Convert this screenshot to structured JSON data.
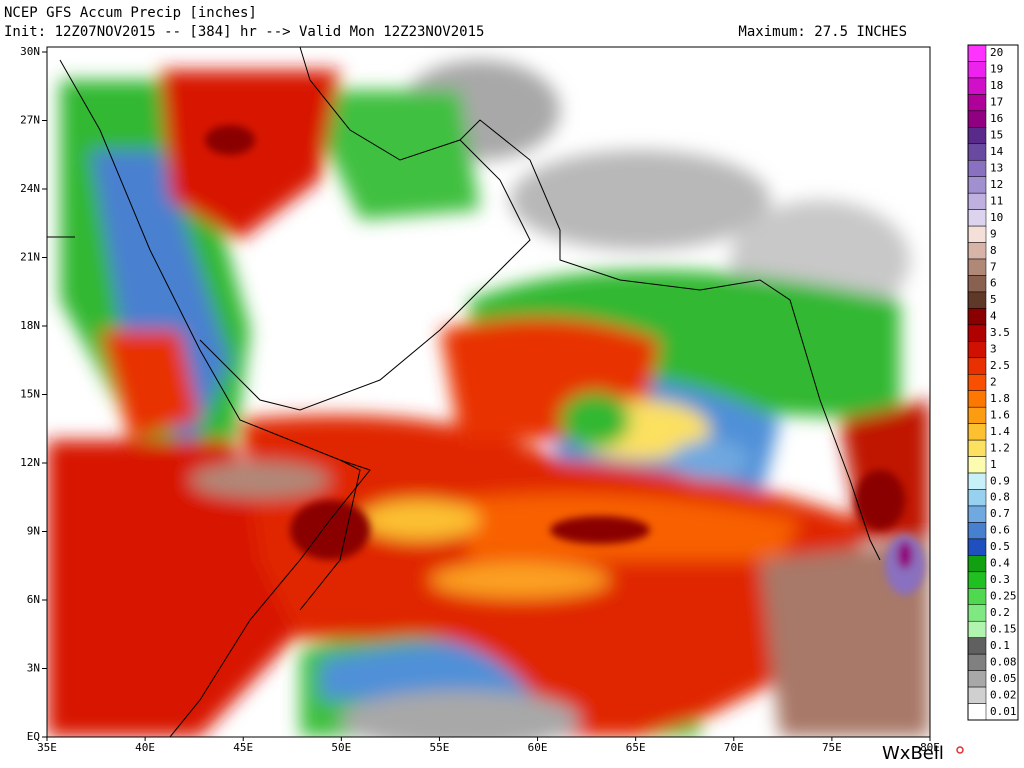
{
  "header": {
    "title": "NCEP GFS Accum Precip [inches]",
    "subtitle": "Init: 12Z07NOV2015 -- [384] hr --> Valid Mon 12Z23NOV2015",
    "maximum": "Maximum: 27.5 INCHES"
  },
  "map": {
    "lat_labels": [
      "30N",
      "27N",
      "24N",
      "21N",
      "18N",
      "15N",
      "12N",
      "9N",
      "6N",
      "3N",
      "EQ"
    ],
    "lon_labels": [
      "35E",
      "40E",
      "45E",
      "50E",
      "55E",
      "60E",
      "65E",
      "70E",
      "75E",
      "80E"
    ]
  },
  "colorbar": [
    {
      "label": "20",
      "color": "#ff33ff"
    },
    {
      "label": "19",
      "color": "#ee22ee"
    },
    {
      "label": "18",
      "color": "#d010c8"
    },
    {
      "label": "17",
      "color": "#b0009a"
    },
    {
      "label": "16",
      "color": "#900080"
    },
    {
      "label": "15",
      "color": "#5a2a8a"
    },
    {
      "label": "14",
      "color": "#6a4aa0"
    },
    {
      "label": "13",
      "color": "#8a70c0"
    },
    {
      "label": "12",
      "color": "#a090d0"
    },
    {
      "label": "11",
      "color": "#c0b0e0"
    },
    {
      "label": "10",
      "color": "#dcd4ee"
    },
    {
      "label": "9",
      "color": "#f4e0d8"
    },
    {
      "label": "8",
      "color": "#d8b4a8"
    },
    {
      "label": "7",
      "color": "#b08878"
    },
    {
      "label": "6",
      "color": "#8a6050"
    },
    {
      "label": "5",
      "color": "#603828"
    },
    {
      "label": "4",
      "color": "#8a0000"
    },
    {
      "label": "3.5",
      "color": "#b00000"
    },
    {
      "label": "3",
      "color": "#d01000"
    },
    {
      "label": "2.5",
      "color": "#e83000"
    },
    {
      "label": "2",
      "color": "#f85000"
    },
    {
      "label": "1.8",
      "color": "#fc7800"
    },
    {
      "label": "1.6",
      "color": "#fc9c10"
    },
    {
      "label": "1.4",
      "color": "#fcc030"
    },
    {
      "label": "1.2",
      "color": "#fce060"
    },
    {
      "label": "1",
      "color": "#fcfcb0"
    },
    {
      "label": "0.9",
      "color": "#c8f0f8"
    },
    {
      "label": "0.8",
      "color": "#98d0f0"
    },
    {
      "label": "0.7",
      "color": "#70a8e0"
    },
    {
      "label": "0.6",
      "color": "#4880d0"
    },
    {
      "label": "0.5",
      "color": "#2050c0"
    },
    {
      "label": "0.4",
      "color": "#10a010"
    },
    {
      "label": "0.3",
      "color": "#20c020"
    },
    {
      "label": "0.25",
      "color": "#50d850"
    },
    {
      "label": "0.2",
      "color": "#80e880"
    },
    {
      "label": "0.15",
      "color": "#b0f4b0"
    },
    {
      "label": "0.1",
      "color": "#606060"
    },
    {
      "label": "0.08",
      "color": "#808080"
    },
    {
      "label": "0.05",
      "color": "#a8a8a8"
    },
    {
      "label": "0.02",
      "color": "#d0d0d0"
    },
    {
      "label": "0.01",
      "color": "#ffffff"
    }
  ],
  "watermark": "WxBell"
}
